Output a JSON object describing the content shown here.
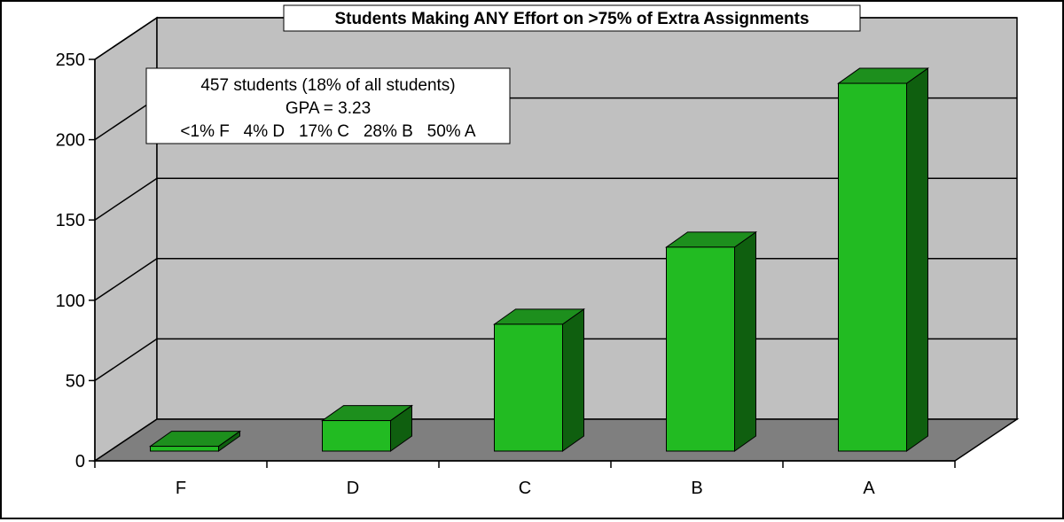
{
  "chart_data": {
    "type": "bar",
    "title": "Students Making ANY Effort on >75% of Extra Assignments",
    "xlabel": "",
    "ylabel": "",
    "categories": [
      "F",
      "D",
      "C",
      "B",
      "A"
    ],
    "values": [
      3,
      19,
      79,
      127,
      229
    ],
    "ylim": [
      0,
      250
    ],
    "yticks": [
      "0",
      "50",
      "100",
      "150",
      "200",
      "250"
    ],
    "grid": true,
    "three_d": true,
    "annotation": [
      "457 students (18% of all students)",
      "GPA = 3.23",
      "<1% F   4% D   17% C   28% B   50% A"
    ],
    "colors": {
      "bar_front": "#22bb22",
      "bar_top": "#1d8f1d",
      "bar_side": "#0f5f0f",
      "back_wall": "#c0c0c0",
      "side_wall": "#c0c0c0",
      "floor": "#7f7f7f"
    }
  }
}
